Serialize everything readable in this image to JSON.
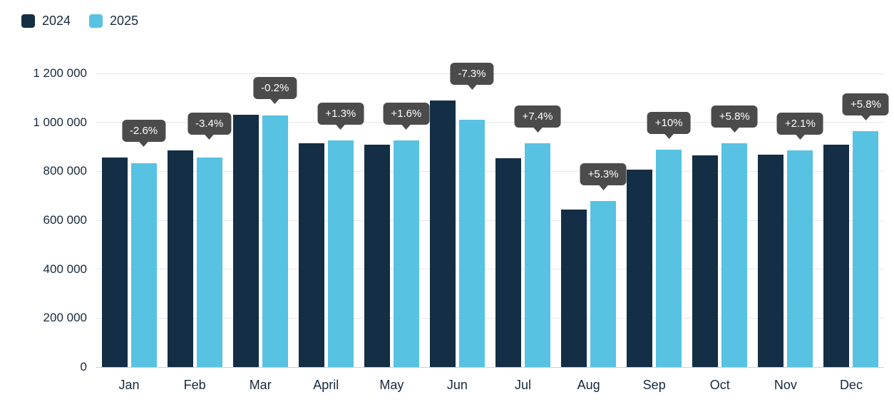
{
  "colors": {
    "series_2024": "#132e45",
    "series_2025": "#57c2e1",
    "tooltip_bg": "#4b4b4b",
    "tooltip_text": "#ffffff",
    "grid": "#e4e7ea",
    "axis_text": "#16293c"
  },
  "chart_data": {
    "type": "bar",
    "title": "",
    "xlabel": "",
    "ylabel": "",
    "grid": true,
    "legend_position": "top-left",
    "ylim": [
      0,
      1200000
    ],
    "categories": [
      "Jan",
      "Feb",
      "Mar",
      "April",
      "May",
      "Jun",
      "Jul",
      "Aug",
      "Sep",
      "Oct",
      "Nov",
      "Dec"
    ],
    "series": [
      {
        "name": "2024",
        "color": "#132e45",
        "values": [
          855000,
          885000,
          1030000,
          915000,
          910000,
          1090000,
          852000,
          645000,
          808000,
          866000,
          868000,
          910000
        ]
      },
      {
        "name": "2025",
        "color": "#57c2e1",
        "values": [
          832000,
          855000,
          1028000,
          927000,
          925000,
          1010000,
          915000,
          679000,
          889000,
          916000,
          886000,
          963000
        ]
      }
    ],
    "change_labels": [
      "-2.6%",
      "-3.4%",
      "-0.2%",
      "+1.3%",
      "+1.6%",
      "-7.3%",
      "+7.4%",
      "+5.3%",
      "+10%",
      "+5.8%",
      "+2.1%",
      "+5.8%"
    ],
    "y_ticks": [
      {
        "value": 0,
        "label": "0"
      },
      {
        "value": 200000,
        "label": "200 000"
      },
      {
        "value": 400000,
        "label": "400 000"
      },
      {
        "value": 600000,
        "label": "600 000"
      },
      {
        "value": 800000,
        "label": "800 000"
      },
      {
        "value": 1000000,
        "label": "1 000 000"
      },
      {
        "value": 1200000,
        "label": "1 200 000"
      }
    ]
  }
}
